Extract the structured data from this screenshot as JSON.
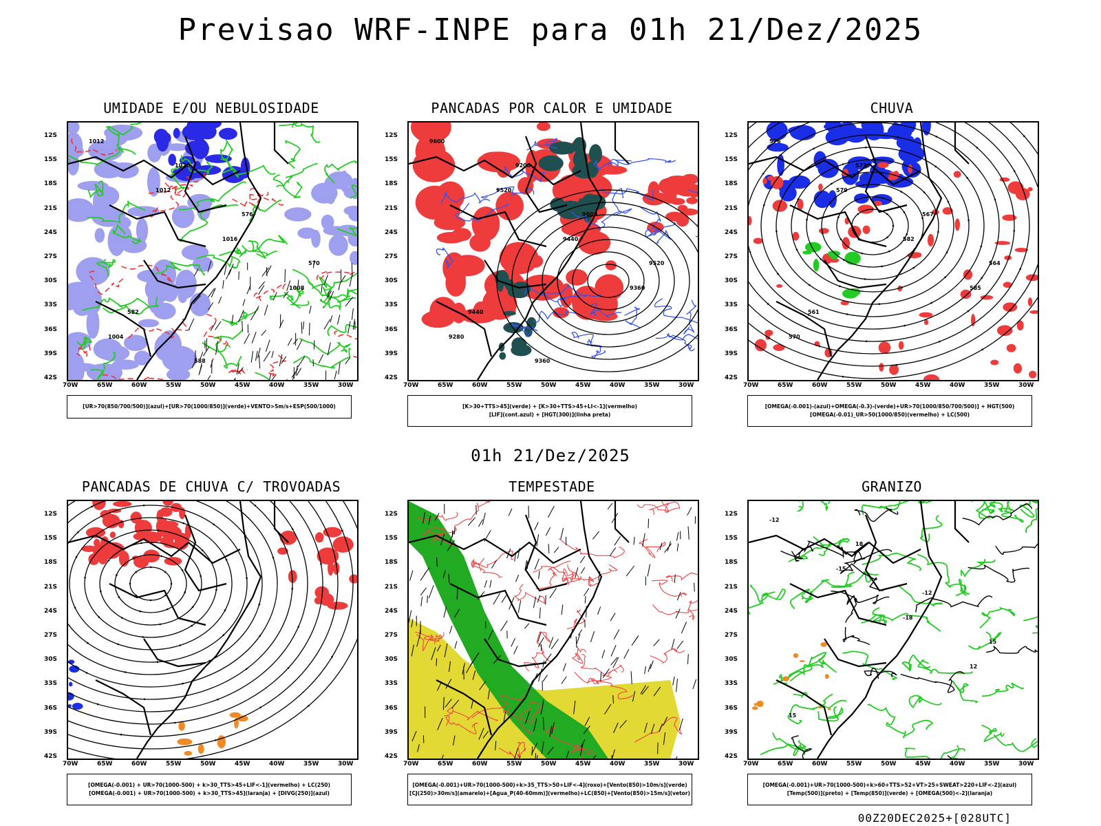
{
  "main_title": "Previsao WRF-INPE  para 01h 21/Dez/2025",
  "mid_title": "01h 21/Dez/2025",
  "footer": "00Z20DEC2025+[028UTC]",
  "lat_labels": [
    "12S",
    "15S",
    "18S",
    "21S",
    "24S",
    "27S",
    "30S",
    "33S",
    "36S",
    "39S",
    "42S"
  ],
  "lon_labels": [
    "70W",
    "65W",
    "60W",
    "55W",
    "50W",
    "45W",
    "40W",
    "35W",
    "30W"
  ],
  "panels": [
    {
      "title": "UMIDADE E/OU NEBULOSIDADE",
      "legend": [
        "[UR>70(850/700/500)](azul)+[UR>70(1000/850)](verde)+VENTO>5m/s+ESP(500/1000)"
      ],
      "colors": {
        "primary": "#9f9fef",
        "secondary": "#2a2ae6",
        "contour": "#22cc22",
        "dash": "#ee3333"
      },
      "contour_labels": [
        "1012",
        "1012",
        "1016",
        "1008",
        "1004",
        "1020",
        "576",
        "570",
        "582",
        "588"
      ]
    },
    {
      "title": "PANCADAS POR CALOR E UMIDADE",
      "legend": [
        "[K>30+TTS>45](verde) + [K>30+TTS>45+LI<-1](vermelho)",
        "[LIF](cont.azul) + [HGT(300)](linha preta)"
      ],
      "colors": {
        "primary": "#ee3b3b",
        "secondary": "#1f4f4f",
        "contour": "#3355ee"
      },
      "contour_labels": [
        "9600",
        "9520",
        "9440",
        "9360",
        "9280",
        "9200",
        "9600",
        "9520",
        "9440",
        "9360"
      ]
    },
    {
      "title": "CHUVA",
      "legend": [
        "[OMEGA(-0.001)-(azul)+OMEGA(-0.3)-(verde)+UR>70(1000/850/700/500)] + HGT(500)",
        "[OMEGA(-0.01)_UR>50(1000/850)(vermelho) + LC(500)"
      ],
      "colors": {
        "primary": "#ee3b3b",
        "secondary": "#1a2ee8",
        "contour": "#22cc22"
      },
      "contour_labels": [
        "576",
        "579",
        "582",
        "585",
        "570",
        "573",
        "567",
        "564",
        "561"
      ]
    },
    {
      "title": "PANCADAS DE CHUVA C/ TROVOADAS",
      "legend": [
        "[OMEGA(-0.001) + UR>70(1000-500) + k>30_TTS>45+LIF<-1](vermelho) + LC(250)",
        "[OMEGA(-0.001) + UR>70(1000-500) + k>30_TTS>45](laranja) + [DIVG(250)](azul)"
      ],
      "colors": {
        "primary": "#ee3b3b",
        "secondary": "#f08a24",
        "contour": "#1a2ee8"
      }
    },
    {
      "title": "TEMPESTADE",
      "legend": [
        "[OMEGA(-0.001)+UR>70(1000-500)+k>35_TTS>50+LIF<-4](roxo)+[Vento(850)>10m/s](verde)",
        "[CJ(250)>30m/s](amarelo)+[Agua_P(40-60mm)](vermelho)+LC(850)+[Vento(850)>15m/s](vetor)"
      ],
      "colors": {
        "primary": "#e3d934",
        "secondary": "#22aa22",
        "contour": "#ee4444"
      }
    },
    {
      "title": "GRANIZO",
      "legend": [
        "[OMEGA(-0.001)+UR>70(1000-500)+k>60+TTS>52+VT>25+SWEAT>220+LIF<-2](azul)",
        "[Temp(500)](preto) + [Temp(850)](verde) + [OMEGA(500)<-2](laranja)"
      ],
      "colors": {
        "primary": "#22cc22",
        "secondary": "#f08a24",
        "contour": "#22cc22"
      },
      "contour_labels": [
        "-12",
        "-15",
        "-18",
        "12",
        "15",
        "18",
        "-12",
        "15"
      ]
    }
  ]
}
